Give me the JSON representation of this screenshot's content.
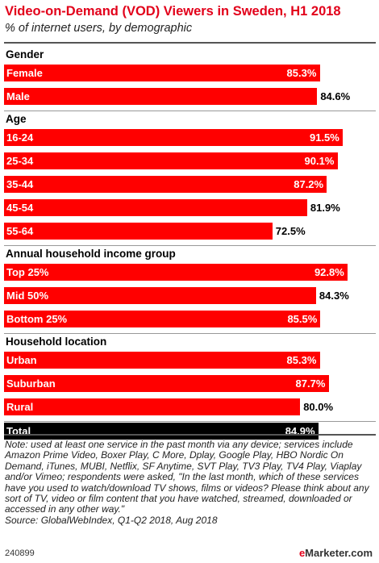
{
  "title": "Video-on-Demand (VOD) Viewers in Sweden, H1 2018",
  "subtitle": "% of internet users, by demographic",
  "colors": {
    "bar": "#ff0000",
    "total_bar": "#000000",
    "title": "#e2001a"
  },
  "chart_data": {
    "type": "bar",
    "orientation": "horizontal",
    "xlim": [
      0,
      100
    ],
    "grid": false,
    "groups": [
      {
        "label": "Gender",
        "items": [
          {
            "category": "Female",
            "value": 85.3,
            "label": "85.3%"
          },
          {
            "category": "Male",
            "value": 84.6,
            "label": "84.6%"
          }
        ]
      },
      {
        "label": "Age",
        "items": [
          {
            "category": "16-24",
            "value": 91.5,
            "label": "91.5%"
          },
          {
            "category": "25-34",
            "value": 90.1,
            "label": "90.1%"
          },
          {
            "category": "35-44",
            "value": 87.2,
            "label": "87.2%"
          },
          {
            "category": "45-54",
            "value": 81.9,
            "label": "81.9%"
          },
          {
            "category": "55-64",
            "value": 72.5,
            "label": "72.5%"
          }
        ]
      },
      {
        "label": "Annual household income group",
        "items": [
          {
            "category": "Top 25%",
            "value": 92.8,
            "label": "92.8%"
          },
          {
            "category": "Mid 50%",
            "value": 84.3,
            "label": "84.3%"
          },
          {
            "category": "Bottom 25%",
            "value": 85.5,
            "label": "85.5%"
          }
        ]
      },
      {
        "label": "Household location",
        "items": [
          {
            "category": "Urban",
            "value": 85.3,
            "label": "85.3%"
          },
          {
            "category": "Suburban",
            "value": 87.7,
            "label": "87.7%"
          },
          {
            "category": "Rural",
            "value": 80.0,
            "label": "80.0%"
          }
        ]
      }
    ],
    "total": {
      "category": "Total",
      "value": 84.9,
      "label": "84.9%"
    }
  },
  "note": "Note: used at least one service in the past month via any device; services include Amazon Prime Video, Boxer Play, C More, Dplay, Google Play, HBO Nordic On Demand, iTunes, MUBI, Netflix, SF Anytime, SVT Play, TV3 Play, TV4 Play, Viaplay and/or Vimeo; respondents were asked, \"In the last month, which of these services have you used to watch/download TV shows, films or videos? Please think about any sort of TV, video or film content that you have watched, streamed, downloaded or accessed in any other way.\"",
  "source": "Source: GlobalWebIndex, Q1-Q2 2018, Aug 2018",
  "footer": {
    "chart_id": "240899",
    "logo_prefix": "e",
    "logo_rest": "Marketer",
    "logo_suffix": ".com"
  }
}
